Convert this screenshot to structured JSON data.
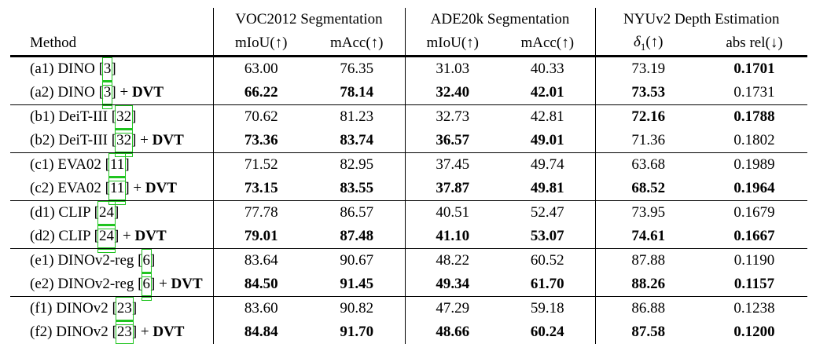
{
  "colors": {
    "citation_box": "#1fc41f",
    "rule": "#000000",
    "background": "#ffffff"
  },
  "table": {
    "method_header": "Method",
    "col_groups": [
      {
        "label": "VOC2012 Segmentation"
      },
      {
        "label": "ADE20k Segmentation"
      },
      {
        "label": "NYUv2 Depth Estimation"
      }
    ],
    "sub_headers": [
      {
        "text": "mIoU(↑)"
      },
      {
        "text": "mAcc(↑)"
      },
      {
        "text": "mIoU(↑)"
      },
      {
        "text": "mAcc(↑)"
      },
      {
        "main": "δ",
        "sub": "1",
        "rest": "(↑)"
      },
      {
        "text": "abs rel(↓)"
      }
    ],
    "rows": [
      {
        "pre": "(a1) DINO [",
        "cite": "3",
        "post": "]",
        "dvt": "",
        "vals": [
          {
            "v": "63.00",
            "b": false
          },
          {
            "v": "76.35",
            "b": false
          },
          {
            "v": "31.03",
            "b": false
          },
          {
            "v": "40.33",
            "b": false
          },
          {
            "v": "73.19",
            "b": false
          },
          {
            "v": "0.1701",
            "b": true
          }
        ]
      },
      {
        "pre": "(a2) DINO [",
        "cite": "3",
        "post": "] + ",
        "dvt": "DVT",
        "vals": [
          {
            "v": "66.22",
            "b": true
          },
          {
            "v": "78.14",
            "b": true
          },
          {
            "v": "32.40",
            "b": true
          },
          {
            "v": "42.01",
            "b": true
          },
          {
            "v": "73.53",
            "b": true
          },
          {
            "v": "0.1731",
            "b": false
          }
        ]
      },
      {
        "pre": "(b1) DeiT-III [",
        "cite": "32",
        "post": "]",
        "dvt": "",
        "vals": [
          {
            "v": "70.62",
            "b": false
          },
          {
            "v": "81.23",
            "b": false
          },
          {
            "v": "32.73",
            "b": false
          },
          {
            "v": "42.81",
            "b": false
          },
          {
            "v": "72.16",
            "b": true
          },
          {
            "v": "0.1788",
            "b": true
          }
        ]
      },
      {
        "pre": "(b2) DeiT-III [",
        "cite": "32",
        "post": "] + ",
        "dvt": "DVT",
        "vals": [
          {
            "v": "73.36",
            "b": true
          },
          {
            "v": "83.74",
            "b": true
          },
          {
            "v": "36.57",
            "b": true
          },
          {
            "v": "49.01",
            "b": true
          },
          {
            "v": "71.36",
            "b": false
          },
          {
            "v": "0.1802",
            "b": false
          }
        ]
      },
      {
        "pre": "(c1) EVA02 [",
        "cite": "11",
        "post": "]",
        "dvt": "",
        "vals": [
          {
            "v": "71.52",
            "b": false
          },
          {
            "v": "82.95",
            "b": false
          },
          {
            "v": "37.45",
            "b": false
          },
          {
            "v": "49.74",
            "b": false
          },
          {
            "v": "63.68",
            "b": false
          },
          {
            "v": "0.1989",
            "b": false
          }
        ]
      },
      {
        "pre": "(c2) EVA02 [",
        "cite": "11",
        "post": "] + ",
        "dvt": "DVT",
        "vals": [
          {
            "v": "73.15",
            "b": true
          },
          {
            "v": "83.55",
            "b": true
          },
          {
            "v": "37.87",
            "b": true
          },
          {
            "v": "49.81",
            "b": true
          },
          {
            "v": "68.52",
            "b": true
          },
          {
            "v": "0.1964",
            "b": true
          }
        ]
      },
      {
        "pre": "(d1) CLIP [",
        "cite": "24",
        "post": "]",
        "dvt": "",
        "vals": [
          {
            "v": "77.78",
            "b": false
          },
          {
            "v": "86.57",
            "b": false
          },
          {
            "v": "40.51",
            "b": false
          },
          {
            "v": "52.47",
            "b": false
          },
          {
            "v": "73.95",
            "b": false
          },
          {
            "v": "0.1679",
            "b": false
          }
        ]
      },
      {
        "pre": "(d2) CLIP [",
        "cite": "24",
        "post": "] + ",
        "dvt": "DVT",
        "vals": [
          {
            "v": "79.01",
            "b": true
          },
          {
            "v": "87.48",
            "b": true
          },
          {
            "v": "41.10",
            "b": true
          },
          {
            "v": "53.07",
            "b": true
          },
          {
            "v": "74.61",
            "b": true
          },
          {
            "v": "0.1667",
            "b": true
          }
        ]
      },
      {
        "pre": "(e1) DINOv2-reg [",
        "cite": "6",
        "post": "]",
        "dvt": "",
        "vals": [
          {
            "v": "83.64",
            "b": false
          },
          {
            "v": "90.67",
            "b": false
          },
          {
            "v": "48.22",
            "b": false
          },
          {
            "v": "60.52",
            "b": false
          },
          {
            "v": "87.88",
            "b": false
          },
          {
            "v": "0.1190",
            "b": false
          }
        ]
      },
      {
        "pre": "(e2) DINOv2-reg [",
        "cite": "6",
        "post": "] + ",
        "dvt": "DVT",
        "vals": [
          {
            "v": "84.50",
            "b": true
          },
          {
            "v": "91.45",
            "b": true
          },
          {
            "v": "49.34",
            "b": true
          },
          {
            "v": "61.70",
            "b": true
          },
          {
            "v": "88.26",
            "b": true
          },
          {
            "v": "0.1157",
            "b": true
          }
        ]
      },
      {
        "pre": "(f1) DINOv2 [",
        "cite": "23",
        "post": "]",
        "dvt": "",
        "vals": [
          {
            "v": "83.60",
            "b": false
          },
          {
            "v": "90.82",
            "b": false
          },
          {
            "v": "47.29",
            "b": false
          },
          {
            "v": "59.18",
            "b": false
          },
          {
            "v": "86.88",
            "b": false
          },
          {
            "v": "0.1238",
            "b": false
          }
        ]
      },
      {
        "pre": "(f2) DINOv2 [",
        "cite": "23",
        "post": "] + ",
        "dvt": "DVT",
        "vals": [
          {
            "v": "84.84",
            "b": true
          },
          {
            "v": "91.70",
            "b": true
          },
          {
            "v": "48.66",
            "b": true
          },
          {
            "v": "60.24",
            "b": true
          },
          {
            "v": "87.58",
            "b": true
          },
          {
            "v": "0.1200",
            "b": true
          }
        ]
      }
    ]
  }
}
